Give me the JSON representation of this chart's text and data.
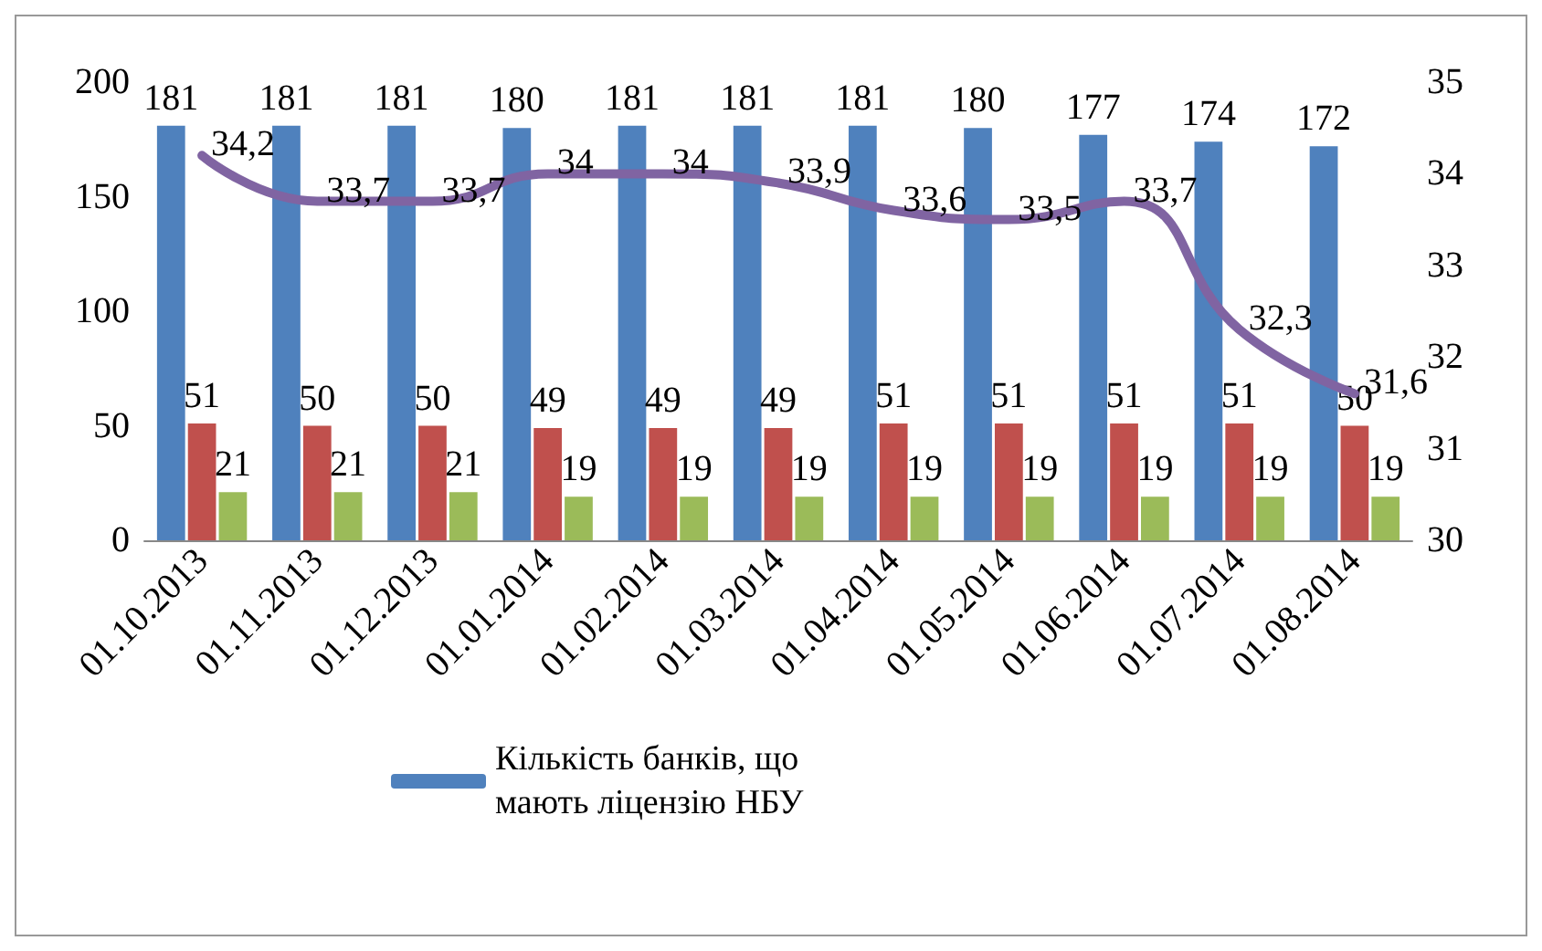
{
  "chart_data": {
    "type": "bar",
    "categories": [
      "01.10.2013",
      "01.11.2013",
      "01.12.2013",
      "01.01.2014",
      "01.02.2014",
      "01.03.2014",
      "01.04.2014",
      "01.05.2014",
      "01.06.2014",
      "01.07.2014",
      "01.08.2014"
    ],
    "series": [
      {
        "name": "Кількість банків, що мають ліцензію НБУ",
        "color": "#4f81bd",
        "values": [
          181,
          181,
          181,
          180,
          181,
          181,
          181,
          180,
          177,
          174,
          172
        ]
      },
      {
        "color": "#c0504d",
        "values": [
          51,
          50,
          50,
          49,
          49,
          49,
          51,
          51,
          51,
          51,
          50
        ]
      },
      {
        "color": "#9bbb59",
        "values": [
          21,
          21,
          21,
          19,
          19,
          19,
          19,
          19,
          19,
          19,
          19
        ]
      },
      {
        "type": "line",
        "axis": "y2",
        "color": "#8064a2",
        "values": [
          34.2,
          33.7,
          33.7,
          34,
          34,
          33.9,
          33.6,
          33.5,
          33.7,
          32.3,
          31.6
        ],
        "value_labels": [
          "34,2",
          "33,7",
          "33,7",
          "34",
          "34",
          "33,9",
          "33,6",
          "33,5",
          "33,7",
          "32,3",
          "31,6"
        ]
      }
    ],
    "ylim": [
      0,
      200
    ],
    "yticks": [
      0,
      50,
      100,
      150,
      200
    ],
    "y2lim": [
      30,
      35
    ],
    "y2ticks": [
      30,
      31,
      32,
      33,
      34,
      35
    ],
    "data_labels": true,
    "grid": false,
    "legend": "bottom",
    "marker": "none",
    "line_style": "solid"
  }
}
